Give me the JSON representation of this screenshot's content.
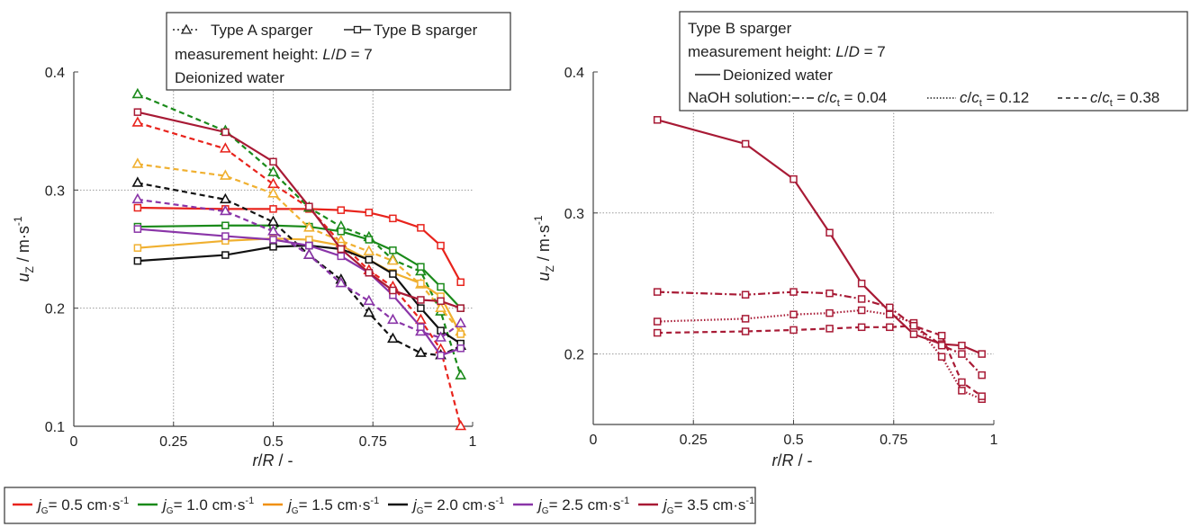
{
  "colors": {
    "0.5": "#e8231c",
    "1.0": "#1a8a1a",
    "1.5": "#f0b030",
    "2.0": "#111111",
    "2.5": "#8a35a8",
    "3.5": "#a81a35"
  },
  "legend_bottom": [
    {
      "key": "0.5",
      "label": "= 0.5 cm·s",
      "color": "#e8231c"
    },
    {
      "key": "1.0",
      "label": "= 1.0 cm·s",
      "color": "#1a8a1a"
    },
    {
      "key": "1.5",
      "label": "= 1.5 cm·s",
      "color": "#f0900a"
    },
    {
      "key": "2.0",
      "label": "= 2.0 cm·s",
      "color": "#111111"
    },
    {
      "key": "2.5",
      "label": "= 2.5 cm·s",
      "color": "#8a35a8"
    },
    {
      "key": "3.5",
      "label": "= 3.5 cm·s",
      "color": "#a81a35"
    }
  ],
  "legend_var": {
    "j": "j",
    "sub": "G",
    "sup": "-1"
  },
  "chart_data": [
    {
      "type": "line",
      "xlabel_parts": [
        "r",
        "/",
        "R",
        " / -"
      ],
      "ylabel_parts": [
        "u",
        "Z",
        " / m·s",
        "-1"
      ],
      "xlim": [
        0,
        1
      ],
      "ylim": [
        0.1,
        0.4
      ],
      "xticks": [
        0,
        0.25,
        0.5,
        0.75,
        1
      ],
      "xtick_labels": [
        "0",
        "0.25",
        "0.5",
        "0.75",
        "1"
      ],
      "yticks": [
        0.1,
        0.2,
        0.3,
        0.4
      ],
      "ytick_labels": [
        "0.1",
        "0.2",
        "0.3",
        "0.4"
      ],
      "grid": true,
      "legend": {
        "lines": [
          {
            "parts": [
              [
                "Type A sparger",
                ""
              ],
              [
                "Type B sparger",
                ""
              ]
            ]
          },
          {
            "text": "measurement height: ",
            "italic_a": "L",
            "mid": "/",
            "italic_b": "D",
            "tail": " = 7"
          },
          {
            "text": "Deionized water"
          }
        ],
        "type_a": "Type A sparger",
        "type_b": "Type B sparger",
        "height_prefix": "measurement height: ",
        "height_l": "L",
        "height_d": "D",
        "height_suffix": " = 7",
        "fluid": "Deionized water"
      },
      "series": [
        {
          "key": "0.5",
          "marker": "triangle",
          "style": "dashed",
          "x": [
            0.16,
            0.38,
            0.5,
            0.59,
            0.67,
            0.74,
            0.8,
            0.87,
            0.92,
            0.97
          ],
          "y": [
            0.357,
            0.335,
            0.305,
            0.285,
            0.255,
            0.232,
            0.218,
            0.19,
            0.165,
            0.1
          ]
        },
        {
          "key": "0.5",
          "marker": "square",
          "style": "solid",
          "x": [
            0.16,
            0.38,
            0.5,
            0.59,
            0.67,
            0.74,
            0.8,
            0.87,
            0.92,
            0.97
          ],
          "y": [
            0.285,
            0.284,
            0.284,
            0.284,
            0.283,
            0.281,
            0.276,
            0.268,
            0.253,
            0.222
          ]
        },
        {
          "key": "1.0",
          "marker": "triangle",
          "style": "dashed",
          "x": [
            0.16,
            0.38,
            0.5,
            0.59,
            0.67,
            0.74,
            0.8,
            0.87,
            0.92,
            0.97
          ],
          "y": [
            0.381,
            0.35,
            0.315,
            0.285,
            0.269,
            0.26,
            0.241,
            0.231,
            0.197,
            0.143
          ]
        },
        {
          "key": "1.0",
          "marker": "square",
          "style": "solid",
          "x": [
            0.16,
            0.38,
            0.5,
            0.59,
            0.67,
            0.74,
            0.8,
            0.87,
            0.92,
            0.97
          ],
          "y": [
            0.269,
            0.27,
            0.27,
            0.269,
            0.265,
            0.258,
            0.249,
            0.235,
            0.218,
            0.2
          ]
        },
        {
          "key": "1.5",
          "marker": "triangle",
          "style": "dashed",
          "x": [
            0.16,
            0.38,
            0.5,
            0.59,
            0.67,
            0.74,
            0.8,
            0.87,
            0.92,
            0.97
          ],
          "y": [
            0.322,
            0.312,
            0.297,
            0.268,
            0.257,
            0.248,
            0.24,
            0.22,
            0.2,
            0.18
          ]
        },
        {
          "key": "1.5",
          "marker": "square",
          "style": "solid",
          "x": [
            0.16,
            0.38,
            0.5,
            0.59,
            0.67,
            0.74,
            0.8,
            0.87,
            0.92,
            0.97
          ],
          "y": [
            0.251,
            0.257,
            0.259,
            0.258,
            0.253,
            0.241,
            0.23,
            0.221,
            0.21,
            0.178
          ]
        },
        {
          "key": "2.0",
          "marker": "triangle",
          "style": "dashed",
          "x": [
            0.16,
            0.38,
            0.5,
            0.59,
            0.67,
            0.74,
            0.8,
            0.87,
            0.92,
            0.97
          ],
          "y": [
            0.306,
            0.292,
            0.273,
            0.245,
            0.224,
            0.196,
            0.174,
            0.162,
            0.16,
            0.168
          ]
        },
        {
          "key": "2.0",
          "marker": "square",
          "style": "solid",
          "x": [
            0.16,
            0.38,
            0.5,
            0.59,
            0.67,
            0.74,
            0.8,
            0.87,
            0.92,
            0.97
          ],
          "y": [
            0.24,
            0.245,
            0.252,
            0.253,
            0.25,
            0.241,
            0.229,
            0.2,
            0.181,
            0.17
          ]
        },
        {
          "key": "2.5",
          "marker": "triangle",
          "style": "dashed",
          "x": [
            0.16,
            0.38,
            0.5,
            0.59,
            0.67,
            0.74,
            0.8,
            0.87,
            0.92,
            0.97
          ],
          "y": [
            0.292,
            0.282,
            0.265,
            0.245,
            0.221,
            0.206,
            0.19,
            0.18,
            0.175,
            0.187
          ]
        },
        {
          "key": "2.5",
          "marker": "square",
          "style": "solid",
          "x": [
            0.16,
            0.38,
            0.5,
            0.59,
            0.67,
            0.74,
            0.8,
            0.87,
            0.92,
            0.97
          ],
          "y": [
            0.267,
            0.261,
            0.258,
            0.253,
            0.244,
            0.23,
            0.211,
            0.184,
            0.16,
            0.166
          ]
        },
        {
          "key": "3.5",
          "marker": "square",
          "style": "solid",
          "x": [
            0.16,
            0.38,
            0.5,
            0.59,
            0.67,
            0.74,
            0.8,
            0.87,
            0.92,
            0.97
          ],
          "y": [
            0.366,
            0.349,
            0.324,
            0.286,
            0.25,
            0.23,
            0.215,
            0.207,
            0.206,
            0.2
          ]
        }
      ]
    },
    {
      "type": "line",
      "xlabel_parts": [
        "r",
        "/",
        "R",
        " / -"
      ],
      "ylabel_parts": [
        "u",
        "Z",
        " / m·s",
        "-1"
      ],
      "xlim": [
        0,
        1
      ],
      "ylim": [
        0.15,
        0.4
      ],
      "xticks": [
        0,
        0.25,
        0.5,
        0.75,
        1
      ],
      "xtick_labels": [
        "0",
        "0.25",
        "0.5",
        "0.75",
        "1"
      ],
      "yticks": [
        0.2,
        0.3,
        0.4
      ],
      "ytick_labels": [
        "0.2",
        "0.3",
        "0.4"
      ],
      "grid": true,
      "legend": {
        "sparger": "Type B sparger",
        "height_prefix": "measurement height: ",
        "height_l": "L",
        "height_d": "D",
        "height_suffix": " = 7",
        "fluid": "Deionized water",
        "naoh": "NaOH solution:",
        "conc": [
          {
            "style": "dashdot",
            "value": " = 0.04"
          },
          {
            "style": "dotted",
            "value": " = 0.12"
          },
          {
            "style": "dashed",
            "value": " = 0.38"
          }
        ],
        "c": "c",
        "ct": "c",
        "t": "t"
      },
      "series": [
        {
          "key": "3.5",
          "name": "Deionized water",
          "marker": "square",
          "style": "solid",
          "x": [
            0.16,
            0.38,
            0.5,
            0.59,
            0.67,
            0.74,
            0.8,
            0.87,
            0.92,
            0.97
          ],
          "y": [
            0.366,
            0.349,
            0.324,
            0.286,
            0.25,
            0.23,
            0.214,
            0.207,
            0.206,
            0.2
          ]
        },
        {
          "key": "3.5",
          "name": "c/ct = 0.04",
          "marker": "square",
          "style": "dashdot",
          "x": [
            0.16,
            0.38,
            0.5,
            0.59,
            0.67,
            0.74,
            0.8,
            0.87,
            0.92,
            0.97
          ],
          "y": [
            0.244,
            0.242,
            0.244,
            0.243,
            0.239,
            0.233,
            0.22,
            0.206,
            0.2,
            0.185
          ]
        },
        {
          "key": "3.5",
          "name": "c/ct = 0.12",
          "marker": "square",
          "style": "dotted",
          "x": [
            0.16,
            0.38,
            0.5,
            0.59,
            0.67,
            0.74,
            0.8,
            0.87,
            0.92,
            0.97
          ],
          "y": [
            0.223,
            0.225,
            0.228,
            0.229,
            0.231,
            0.228,
            0.222,
            0.198,
            0.174,
            0.168
          ]
        },
        {
          "key": "3.5",
          "name": "c/ct = 0.38",
          "marker": "square",
          "style": "dashed",
          "x": [
            0.16,
            0.38,
            0.5,
            0.59,
            0.67,
            0.74,
            0.8,
            0.87,
            0.92,
            0.97
          ],
          "y": [
            0.215,
            0.216,
            0.217,
            0.218,
            0.219,
            0.219,
            0.22,
            0.213,
            0.18,
            0.17
          ]
        }
      ]
    }
  ]
}
